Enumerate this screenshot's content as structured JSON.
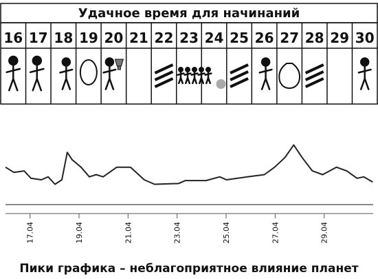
{
  "title": "Удачное время для начинаний",
  "days": [
    "16",
    "17",
    "18",
    "19",
    "20",
    "21",
    "22",
    "23",
    "24",
    "25",
    "26",
    "27",
    "28",
    "29",
    "30"
  ],
  "chart_data": {
    "type": "line",
    "x": [
      16.0,
      16.34,
      16.76,
      17.04,
      17.46,
      17.74,
      18.02,
      18.3,
      18.52,
      18.72,
      19.08,
      19.42,
      19.7,
      19.98,
      20.54,
      21.1,
      21.66,
      22.08,
      23.06,
      23.34,
      24.18,
      24.74,
      25.02,
      25.86,
      26.56,
      26.98,
      27.4,
      27.76,
      28.1,
      28.52,
      28.94,
      29.5,
      29.92,
      30.34,
      30.62,
      30.98
    ],
    "values": [
      30,
      23,
      25,
      15,
      13,
      17,
      7,
      13,
      50,
      40,
      30,
      17,
      20,
      17,
      30,
      30,
      13,
      7,
      8,
      12,
      12,
      17,
      13,
      17,
      20,
      30,
      43,
      60,
      43,
      25,
      20,
      30,
      25,
      15,
      17,
      10
    ],
    "color": "#222",
    "xlim": [
      16,
      31
    ],
    "ylim": [
      0,
      65
    ],
    "xticks": [
      {
        "value": 17,
        "label": "17.04"
      },
      {
        "value": 19,
        "label": "19.04"
      },
      {
        "value": 21,
        "label": "21.04"
      },
      {
        "value": 23,
        "label": "23.04"
      },
      {
        "value": 25,
        "label": "25.04"
      },
      {
        "value": 27,
        "label": "27.04"
      },
      {
        "value": 29,
        "label": "29.04"
      }
    ]
  },
  "caption": "Пики графика – неблагоприятное влияние планет"
}
